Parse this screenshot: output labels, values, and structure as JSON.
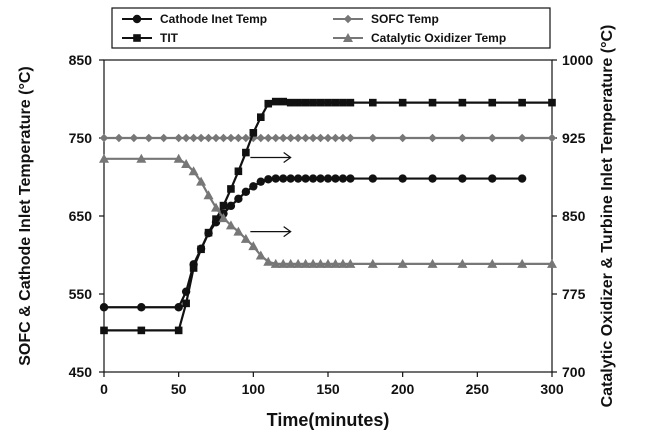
{
  "chart_data": {
    "type": "line",
    "title": "",
    "xlabel": "Time(minutes)",
    "ylabel_left": "SOFC & Cathode Inlet Temperature (°C)",
    "ylabel_right": "Catalytic Oxidizer & Turbine Inlet Temperature (°C)",
    "xlim": [
      0,
      300
    ],
    "ylim_left": [
      450,
      850
    ],
    "ylim_right": [
      700,
      1000
    ],
    "xticks": [
      "0",
      "50",
      "100",
      "150",
      "200",
      "250",
      "300"
    ],
    "yticks_left": [
      "450",
      "550",
      "650",
      "750",
      "850"
    ],
    "yticks_right": [
      "700",
      "775",
      "850",
      "925",
      "1000"
    ],
    "grid": false,
    "legend_position": "top",
    "series": [
      {
        "name": "Cathode Inet Temp",
        "axis": "left",
        "marker": "circle",
        "color": "#111111",
        "x": [
          0,
          25,
          50,
          55,
          60,
          65,
          70,
          75,
          80,
          85,
          90,
          95,
          100,
          105,
          110,
          115,
          120,
          125,
          130,
          135,
          140,
          145,
          150,
          155,
          160,
          165,
          180,
          200,
          220,
          240,
          260,
          280
        ],
        "y": [
          533,
          533,
          533,
          553,
          588,
          608,
          628,
          642,
          653,
          663,
          672,
          681,
          688,
          694,
          697,
          698,
          698,
          698,
          698,
          698,
          698,
          698,
          698,
          698,
          698,
          698,
          698,
          698,
          698,
          698,
          698,
          698
        ]
      },
      {
        "name": "SOFC Temp",
        "axis": "left",
        "marker": "diamond",
        "color": "#777777",
        "x": [
          0,
          10,
          20,
          30,
          40,
          50,
          55,
          60,
          65,
          70,
          75,
          80,
          85,
          90,
          95,
          100,
          105,
          110,
          115,
          120,
          125,
          130,
          135,
          140,
          145,
          150,
          155,
          160,
          165,
          180,
          200,
          220,
          240,
          260,
          280,
          300
        ],
        "y": [
          750,
          750,
          750,
          750,
          750,
          750,
          750,
          750,
          750,
          750,
          750,
          750,
          750,
          750,
          750,
          750,
          750,
          750,
          750,
          750,
          750,
          750,
          750,
          750,
          750,
          750,
          750,
          750,
          750,
          750,
          750,
          750,
          750,
          750,
          750,
          750
        ]
      },
      {
        "name": "TIT",
        "axis": "right",
        "marker": "square",
        "color": "#111111",
        "x": [
          0,
          25,
          50,
          55,
          60,
          65,
          70,
          75,
          80,
          85,
          90,
          95,
          100,
          105,
          110,
          115,
          120,
          125,
          130,
          135,
          140,
          145,
          150,
          155,
          160,
          165,
          180,
          200,
          220,
          240,
          260,
          280,
          300
        ],
        "y": [
          740,
          740,
          740,
          766,
          800,
          818,
          834,
          847,
          860,
          876,
          893,
          911,
          930,
          945,
          958,
          960,
          960,
          959,
          959,
          959,
          959,
          959,
          959,
          959,
          959,
          959,
          959,
          959,
          959,
          959,
          959,
          959,
          959
        ]
      },
      {
        "name": "Catalytic Oxidizer Temp",
        "axis": "right",
        "marker": "triangle",
        "color": "#777777",
        "x": [
          0,
          25,
          50,
          55,
          60,
          65,
          70,
          75,
          80,
          85,
          90,
          95,
          100,
          105,
          110,
          115,
          120,
          125,
          130,
          135,
          140,
          145,
          150,
          155,
          160,
          165,
          180,
          200,
          220,
          240,
          260,
          280,
          300
        ],
        "y": [
          905,
          905,
          905,
          900,
          893,
          883,
          870,
          858,
          848,
          841,
          835,
          828,
          821,
          812,
          806,
          804,
          804,
          804,
          804,
          804,
          804,
          804,
          804,
          804,
          804,
          804,
          804,
          804,
          804,
          804,
          804,
          804,
          804
        ]
      }
    ],
    "annotations": [
      {
        "type": "arrow",
        "from": [
          98,
          725
        ],
        "to": [
          125,
          725
        ],
        "axis": "left"
      },
      {
        "type": "arrow",
        "from": [
          98,
          630
        ],
        "to": [
          125,
          630
        ],
        "axis": "left"
      }
    ]
  }
}
